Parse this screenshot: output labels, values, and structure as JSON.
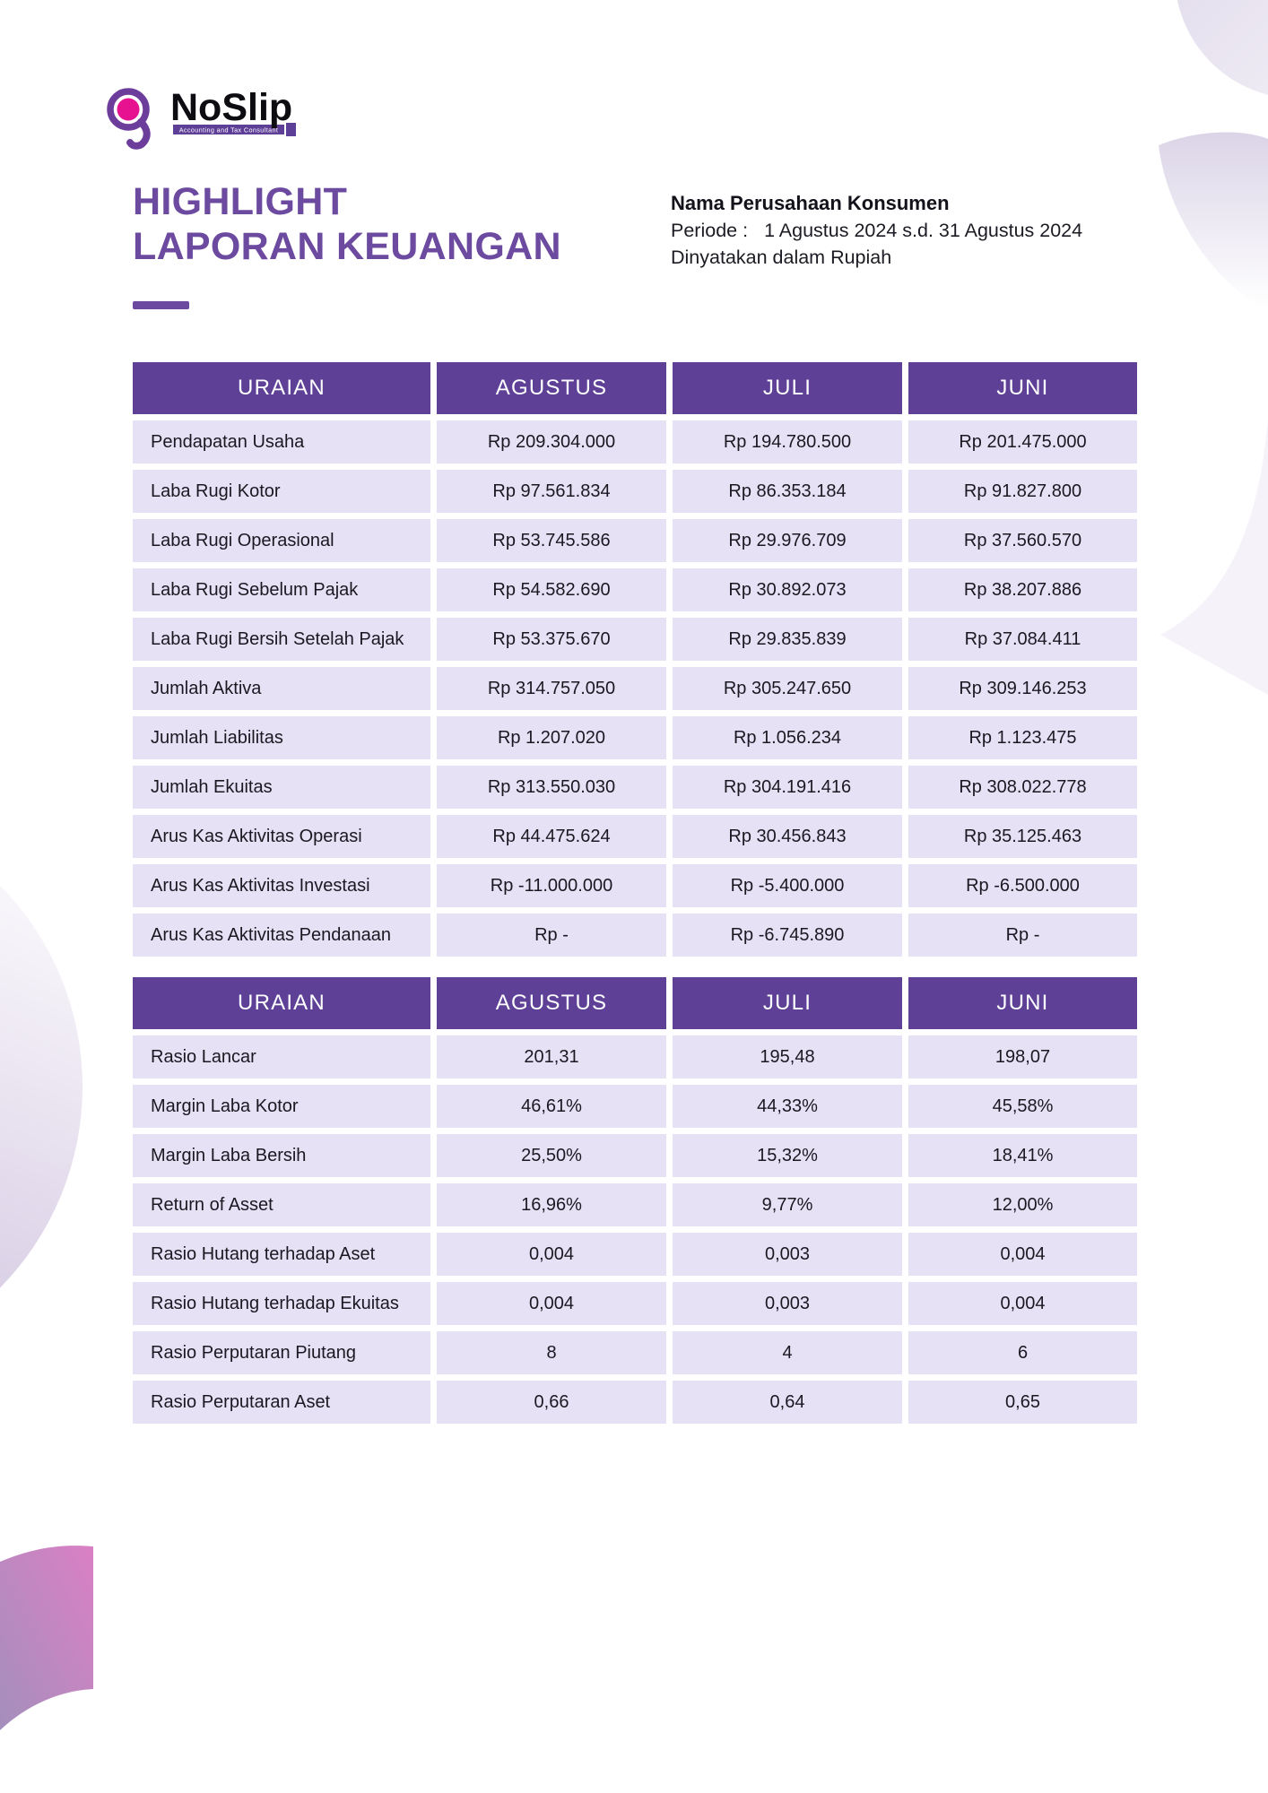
{
  "logo": {
    "brand": "NoSlip",
    "tagline": "Accounting and Tax Consultant"
  },
  "header": {
    "title_line1": "HIGHLIGHT",
    "title_line2": "LAPORAN KEUANGAN",
    "company": "Nama Perusahaan Konsumen",
    "period_label": "Periode :",
    "period_value": "1 Agustus 2024 s.d. 31 Agustus 2024",
    "currency_note": "Dinyatakan dalam Rupiah"
  },
  "colors": {
    "table_header_purple": "#5e4097",
    "row_lavender": "#e7e1f5",
    "title_purple": "#6b4a9f",
    "logo_purple": "#6d3d9c",
    "logo_pink": "#e6128f"
  },
  "tables": [
    {
      "headers": [
        "URAIAN",
        "AGUSTUS",
        "JULI",
        "JUNI"
      ],
      "rows": [
        {
          "label": "Pendapatan Usaha",
          "values": [
            "Rp 209.304.000",
            "Rp 194.780.500",
            "Rp 201.475.000"
          ]
        },
        {
          "label": "Laba Rugi Kotor",
          "values": [
            "Rp 97.561.834",
            "Rp 86.353.184",
            "Rp 91.827.800"
          ]
        },
        {
          "label": "Laba Rugi Operasional",
          "values": [
            "Rp 53.745.586",
            "Rp 29.976.709",
            "Rp 37.560.570"
          ]
        },
        {
          "label": "Laba Rugi Sebelum Pajak",
          "values": [
            "Rp 54.582.690",
            "Rp 30.892.073",
            "Rp 38.207.886"
          ]
        },
        {
          "label": "Laba Rugi Bersih Setelah Pajak",
          "values": [
            "Rp 53.375.670",
            "Rp 29.835.839",
            "Rp 37.084.411"
          ]
        },
        {
          "label": "Jumlah Aktiva",
          "values": [
            "Rp 314.757.050",
            "Rp 305.247.650",
            "Rp 309.146.253"
          ]
        },
        {
          "label": "Jumlah Liabilitas",
          "values": [
            "Rp 1.207.020",
            "Rp 1.056.234",
            "Rp 1.123.475"
          ]
        },
        {
          "label": "Jumlah Ekuitas",
          "values": [
            "Rp 313.550.030",
            "Rp 304.191.416",
            "Rp 308.022.778"
          ]
        },
        {
          "label": "Arus Kas Aktivitas Operasi",
          "values": [
            "Rp 44.475.624",
            "Rp 30.456.843",
            "Rp 35.125.463"
          ]
        },
        {
          "label": "Arus Kas Aktivitas Investasi",
          "values": [
            "Rp -11.000.000",
            "Rp -5.400.000",
            "Rp -6.500.000"
          ]
        },
        {
          "label": "Arus Kas Aktivitas Pendanaan",
          "values": [
            "Rp -",
            "Rp -6.745.890",
            "Rp -"
          ]
        }
      ]
    },
    {
      "headers": [
        "URAIAN",
        "AGUSTUS",
        "JULI",
        "JUNI"
      ],
      "rows": [
        {
          "label": "Rasio Lancar",
          "values": [
            "201,31",
            "195,48",
            "198,07"
          ]
        },
        {
          "label": "Margin Laba Kotor",
          "values": [
            "46,61%",
            "44,33%",
            "45,58%"
          ]
        },
        {
          "label": "Margin Laba Bersih",
          "values": [
            "25,50%",
            "15,32%",
            "18,41%"
          ]
        },
        {
          "label": "Return of Asset",
          "values": [
            "16,96%",
            "9,77%",
            "12,00%"
          ]
        },
        {
          "label": "Rasio Hutang terhadap Aset",
          "values": [
            "0,004",
            "0,003",
            "0,004"
          ]
        },
        {
          "label": "Rasio Hutang terhadap Ekuitas",
          "values": [
            "0,004",
            "0,003",
            "0,004"
          ]
        },
        {
          "label": "Rasio Perputaran Piutang",
          "values": [
            "8",
            "4",
            "6"
          ]
        },
        {
          "label": "Rasio Perputaran Aset",
          "values": [
            "0,66",
            "0,64",
            "0,65"
          ]
        }
      ]
    }
  ]
}
